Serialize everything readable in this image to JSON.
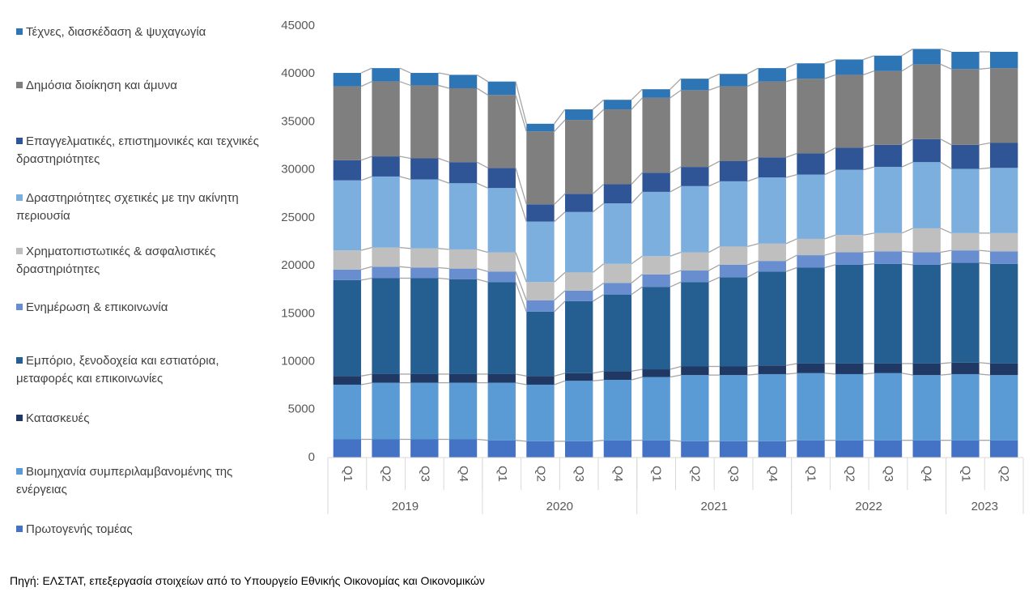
{
  "chart_data": {
    "type": "stacked_bar",
    "source": "Πηγή: ΕΛΣΤΑΤ, επεξεργασία στοιχείων από το Υπουργείο Εθνικής Οικονομίας και Οικονομικών",
    "category_groups": [
      {
        "label": "2019",
        "categories": [
          "Q1",
          "Q2",
          "Q3",
          "Q4"
        ]
      },
      {
        "label": "2020",
        "categories": [
          "Q1",
          "Q2",
          "Q3",
          "Q4"
        ]
      },
      {
        "label": "2021",
        "categories": [
          "Q1",
          "Q2",
          "Q3",
          "Q4"
        ]
      },
      {
        "label": "2022",
        "categories": [
          "Q1",
          "Q2",
          "Q3",
          "Q4"
        ]
      },
      {
        "label": "2023",
        "categories": [
          "Q1",
          "Q2"
        ]
      }
    ],
    "ylim": [
      0,
      45000
    ],
    "yticks": [
      0,
      5000,
      10000,
      15000,
      20000,
      25000,
      30000,
      35000,
      40000,
      45000
    ],
    "grid": false,
    "legend": "left",
    "connector_color": "#a5a5a5",
    "series": [
      {
        "name": "Πρωτογενής τομέας",
        "color": "#4472c4",
        "values": [
          1900,
          1900,
          1900,
          1900,
          1800,
          1700,
          1700,
          1800,
          1800,
          1700,
          1700,
          1700,
          1800,
          1800,
          1800,
          1800,
          1800,
          1800
        ]
      },
      {
        "name": "Βιομηχανία συμπεριλαμβανομένης της ενέργειας",
        "color": "#5b9bd5",
        "values": [
          5700,
          5900,
          5900,
          5900,
          6000,
          5900,
          6300,
          6300,
          6600,
          6900,
          6900,
          7000,
          7000,
          6900,
          7000,
          6800,
          6900,
          6800
        ]
      },
      {
        "name": "Κατασκευές",
        "color": "#203864",
        "values": [
          900,
          900,
          900,
          900,
          900,
          900,
          800,
          900,
          800,
          900,
          900,
          900,
          1000,
          1100,
          1000,
          1200,
          1200,
          1200
        ]
      },
      {
        "name": "Εμπόριο, ξενοδοχεία και εστιατόρια, μεταφορές και επικοινωνίες",
        "color": "#255e91",
        "values": [
          10000,
          10000,
          10000,
          9900,
          9600,
          6700,
          7500,
          8000,
          8600,
          8800,
          9300,
          9800,
          10000,
          10300,
          10400,
          10300,
          10400,
          10400
        ]
      },
      {
        "name": "Ενημέρωση & επικοινωνία",
        "color": "#698ed0",
        "values": [
          1100,
          1200,
          1100,
          1100,
          1100,
          1200,
          1100,
          1200,
          1300,
          1200,
          1300,
          1100,
          1300,
          1300,
          1300,
          1300,
          1300,
          1300
        ]
      },
      {
        "name": "Χρηματοπιστωτικές & ασφαλιστικές δραστηριότητες",
        "color": "#bfbfbf",
        "values": [
          2000,
          2000,
          2000,
          2000,
          2000,
          1900,
          1900,
          2000,
          1900,
          1900,
          1900,
          1800,
          1700,
          1800,
          1900,
          2500,
          1800,
          1900
        ]
      },
      {
        "name": "Δραστηριότητες σχετικές με την ακίνητη περιουσία",
        "color": "#7cafdd",
        "values": [
          7300,
          7400,
          7200,
          6900,
          6700,
          6300,
          6300,
          6300,
          6700,
          6900,
          6800,
          6900,
          6700,
          6800,
          6900,
          6900,
          6700,
          6800
        ]
      },
      {
        "name": "Επαγγελματικές, επιστημονικές και τεχνικές δραστηριότητες",
        "color": "#2f5597",
        "values": [
          2100,
          2100,
          2200,
          2200,
          2100,
          1800,
          1900,
          2000,
          2000,
          2000,
          2100,
          2100,
          2200,
          2300,
          2300,
          2400,
          2500,
          2600
        ]
      },
      {
        "name": "Δημόσια διοίκηση και άμυνα",
        "color": "#7f7f7f",
        "values": [
          7700,
          7800,
          7600,
          7700,
          7600,
          7600,
          7700,
          7800,
          7800,
          8000,
          7800,
          7900,
          7800,
          7600,
          7700,
          7800,
          7900,
          7800
        ]
      },
      {
        "name": "Τέχνες, διασκέδαση & ψυχαγωγία",
        "color": "#2e75b6",
        "values": [
          1400,
          1400,
          1300,
          1400,
          1400,
          800,
          1100,
          1000,
          900,
          1200,
          1300,
          1400,
          1600,
          1600,
          1600,
          1600,
          1800,
          1700
        ]
      }
    ]
  }
}
